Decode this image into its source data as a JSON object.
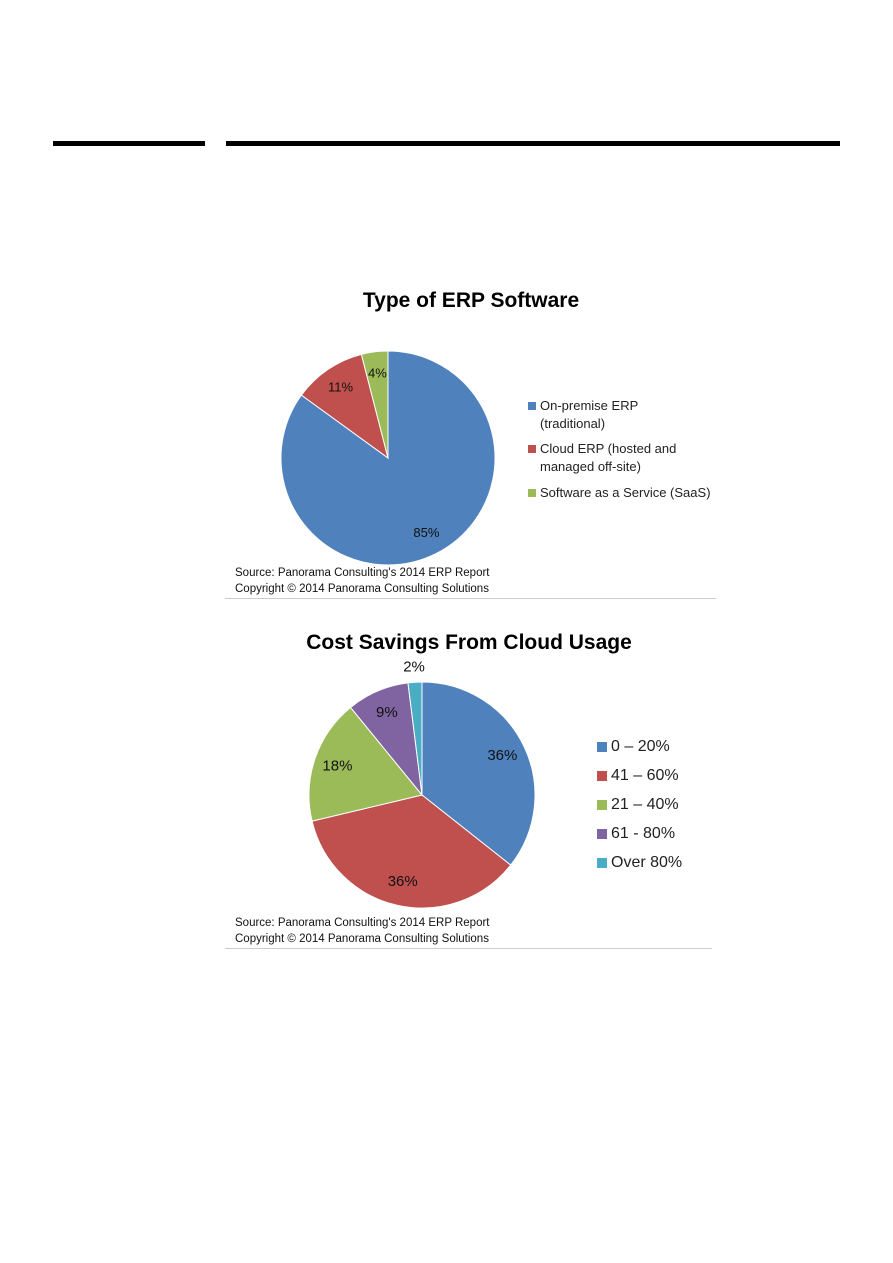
{
  "chart_data": [
    {
      "type": "pie",
      "title": "Type of ERP Software",
      "categories": [
        "On-premise ERP (traditional)",
        "Cloud ERP (hosted and managed off-site)",
        "Software as a Service (SaaS)"
      ],
      "values": [
        85,
        11,
        4
      ],
      "value_labels": [
        "85%",
        "11%",
        "4%"
      ],
      "colors": [
        "#4f81bd",
        "#c0504d",
        "#9bbb59"
      ],
      "legend": "right",
      "source": "Source: Panorama Consulting's 2014 ERP Report",
      "copyright": "Copyright © 2014 Panorama Consulting Solutions"
    },
    {
      "type": "pie",
      "title": "Cost Savings From Cloud Usage",
      "categories": [
        "0 – 20%",
        "41 – 60%",
        "21 – 40%",
        "61 - 80%",
        "Over 80%"
      ],
      "values": [
        36,
        36,
        18,
        9,
        2
      ],
      "value_labels": [
        "36%",
        "36%",
        "18%",
        "9%",
        "2%"
      ],
      "colors": [
        "#4f81bd",
        "#c0504d",
        "#9bbb59",
        "#8064a2",
        "#4bacc6"
      ],
      "legend": "right",
      "source": "Source: Panorama Consulting's 2014 ERP Report",
      "copyright": "Copyright © 2014 Panorama Consulting Solutions"
    }
  ]
}
